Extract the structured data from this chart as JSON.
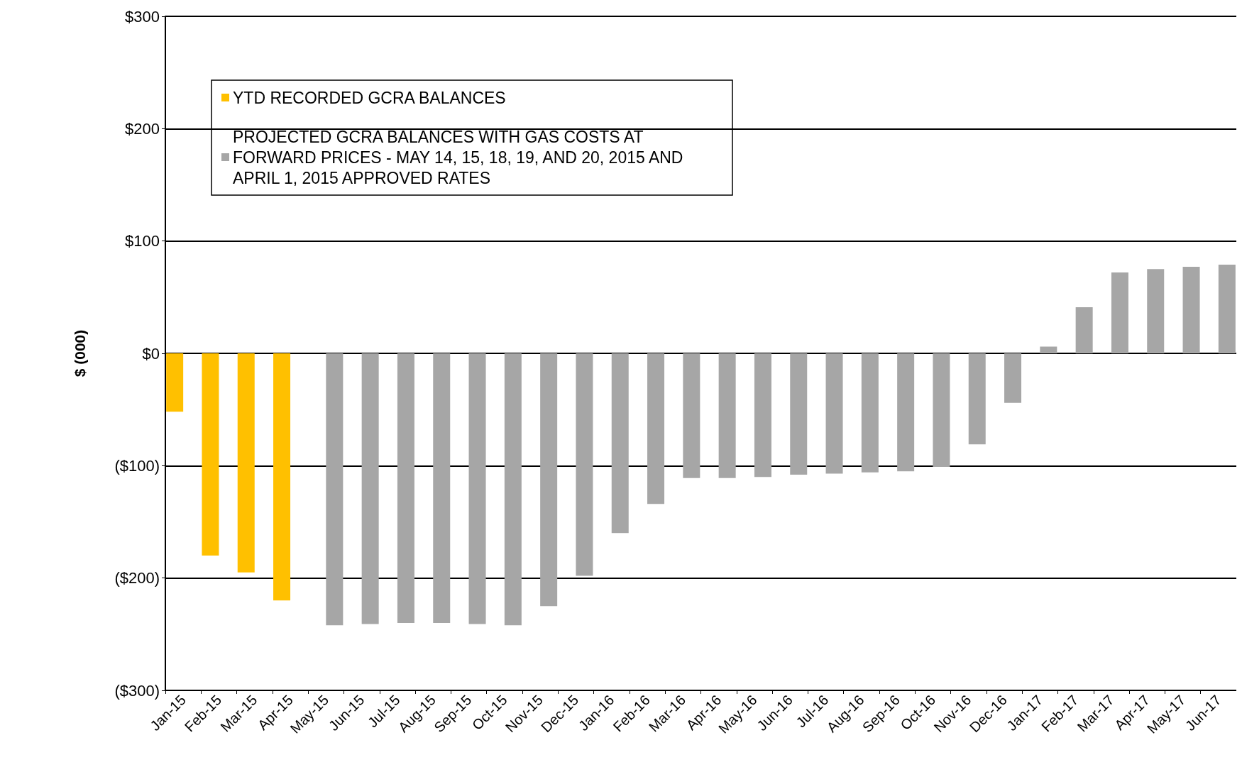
{
  "chart_data": {
    "type": "bar",
    "ylabel": "$ (000)",
    "categories": [
      "Jan-15",
      "Feb-15",
      "Mar-15",
      "Apr-15",
      "May-15",
      "Jun-15",
      "Jul-15",
      "Aug-15",
      "Sep-15",
      "Oct-15",
      "Nov-15",
      "Dec-15",
      "Jan-16",
      "Feb-16",
      "Mar-16",
      "Apr-16",
      "May-16",
      "Jun-16",
      "Jul-16",
      "Aug-16",
      "Sep-16",
      "Oct-16",
      "Nov-16",
      "Dec-16",
      "Jan-17",
      "Feb-17",
      "Mar-17",
      "Apr-17",
      "May-17",
      "Jun-17"
    ],
    "series": [
      {
        "name": "YTD RECORDED GCRA BALANCES",
        "color": "#ffc000",
        "values": [
          -52,
          -180,
          -195,
          -220,
          null,
          null,
          null,
          null,
          null,
          null,
          null,
          null,
          null,
          null,
          null,
          null,
          null,
          null,
          null,
          null,
          null,
          null,
          null,
          null,
          null,
          null,
          null,
          null,
          null,
          null
        ]
      },
      {
        "name": "PROJECTED GCRA BALANCES WITH GAS COSTS AT FORWARD PRICES - MAY 14, 15, 18, 19, AND 20, 2015 AND APRIL 1, 2015 APPROVED RATES",
        "color": "#a6a6a6",
        "values": [
          null,
          null,
          null,
          null,
          -242,
          -241,
          -240,
          -240,
          -241,
          -242,
          -225,
          -198,
          -160,
          -134,
          -111,
          -111,
          -110,
          -108,
          -107,
          -106,
          -105,
          -101,
          -81,
          -44,
          6,
          41,
          72,
          75,
          77,
          79
        ]
      }
    ],
    "ylim": [
      -300,
      300
    ],
    "yticks": [
      {
        "value": -300,
        "label": "($300)"
      },
      {
        "value": -200,
        "label": "($200)"
      },
      {
        "value": -100,
        "label": "($100)"
      },
      {
        "value": 0,
        "label": "$0"
      },
      {
        "value": 100,
        "label": "$100"
      },
      {
        "value": 200,
        "label": "$200"
      },
      {
        "value": 300,
        "label": "$300"
      }
    ],
    "grid": "y",
    "legend": "top left"
  }
}
